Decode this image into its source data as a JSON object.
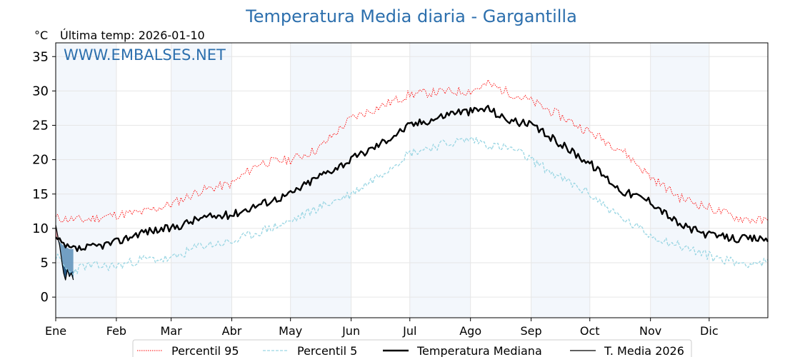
{
  "chart_data": {
    "type": "line",
    "title": "Temperatura Media diaria - Gargantilla",
    "unit": "°C",
    "last_temp_label": "Última temp: 2026-01-10",
    "watermark": "WWW.EMBALSES.NET",
    "ylim": [
      -3,
      37
    ],
    "y_ticks": [
      0,
      5,
      10,
      15,
      20,
      25,
      30,
      35
    ],
    "x_range_days": [
      1,
      365
    ],
    "months": [
      {
        "label": "Ene",
        "day": 1
      },
      {
        "label": "Feb",
        "day": 32
      },
      {
        "label": "Mar",
        "day": 60
      },
      {
        "label": "Abr",
        "day": 91
      },
      {
        "label": "May",
        "day": 121
      },
      {
        "label": "Jun",
        "day": 152
      },
      {
        "label": "Jul",
        "day": 182
      },
      {
        "label": "Ago",
        "day": 213
      },
      {
        "label": "Sep",
        "day": 244
      },
      {
        "label": "Oct",
        "day": 274
      },
      {
        "label": "Nov",
        "day": 305
      },
      {
        "label": "Dic",
        "day": 335
      }
    ],
    "grid": true,
    "legend_position": "bottom",
    "series": [
      {
        "name": "Percentil 95",
        "color": "#ff0000",
        "style": "dotted",
        "points": [
          [
            1,
            11.5
          ],
          [
            15,
            11.2
          ],
          [
            32,
            12.0
          ],
          [
            45,
            12.3
          ],
          [
            60,
            13.5
          ],
          [
            75,
            15.5
          ],
          [
            91,
            16.5
          ],
          [
            105,
            19.5
          ],
          [
            121,
            20.0
          ],
          [
            135,
            21.5
          ],
          [
            152,
            26.0
          ],
          [
            165,
            27.5
          ],
          [
            182,
            29.5
          ],
          [
            195,
            29.8
          ],
          [
            213,
            30.0
          ],
          [
            222,
            31.0
          ],
          [
            235,
            29.5
          ],
          [
            244,
            28.5
          ],
          [
            258,
            26.5
          ],
          [
            274,
            24.0
          ],
          [
            290,
            21.5
          ],
          [
            305,
            17.5
          ],
          [
            320,
            14.5
          ],
          [
            335,
            13.0
          ],
          [
            350,
            11.5
          ],
          [
            365,
            11.0
          ]
        ]
      },
      {
        "name": "Percentil 5",
        "color": "#9ad6e3",
        "style": "dashed",
        "points": [
          [
            1,
            6.0
          ],
          [
            8,
            3.5
          ],
          [
            15,
            4.5
          ],
          [
            32,
            4.5
          ],
          [
            45,
            5.5
          ],
          [
            60,
            5.5
          ],
          [
            75,
            7.5
          ],
          [
            91,
            8.0
          ],
          [
            105,
            9.5
          ],
          [
            121,
            11.0
          ],
          [
            135,
            13.0
          ],
          [
            152,
            15.0
          ],
          [
            165,
            17.5
          ],
          [
            182,
            21.0
          ],
          [
            195,
            22.0
          ],
          [
            213,
            23.0
          ],
          [
            225,
            22.0
          ],
          [
            235,
            21.5
          ],
          [
            244,
            20.0
          ],
          [
            258,
            17.5
          ],
          [
            274,
            15.0
          ],
          [
            290,
            11.5
          ],
          [
            305,
            9.0
          ],
          [
            320,
            7.5
          ],
          [
            335,
            6.0
          ],
          [
            350,
            5.0
          ],
          [
            365,
            5.0
          ]
        ]
      },
      {
        "name": "Temperatura Mediana",
        "color": "#000000",
        "style": "solid-thick",
        "points": [
          [
            1,
            8.5
          ],
          [
            5,
            7.5
          ],
          [
            8,
            7.0
          ],
          [
            15,
            7.0
          ],
          [
            32,
            8.0
          ],
          [
            45,
            9.5
          ],
          [
            60,
            10.0
          ],
          [
            75,
            11.5
          ],
          [
            91,
            12.0
          ],
          [
            105,
            13.5
          ],
          [
            121,
            15.0
          ],
          [
            135,
            17.5
          ],
          [
            152,
            20.0
          ],
          [
            165,
            22.0
          ],
          [
            182,
            25.0
          ],
          [
            195,
            26.0
          ],
          [
            205,
            27.0
          ],
          [
            213,
            27.0
          ],
          [
            222,
            27.5
          ],
          [
            230,
            26.0
          ],
          [
            244,
            25.0
          ],
          [
            258,
            22.5
          ],
          [
            274,
            19.5
          ],
          [
            290,
            15.5
          ],
          [
            305,
            14.0
          ],
          [
            320,
            10.5
          ],
          [
            335,
            9.0
          ],
          [
            350,
            8.5
          ],
          [
            365,
            8.5
          ]
        ]
      },
      {
        "name": "T. Media 2026",
        "color": "#000000",
        "style": "solid-thin",
        "points": [
          [
            1,
            10.5
          ],
          [
            2,
            9.0
          ],
          [
            3,
            7.5
          ],
          [
            4,
            5.5
          ],
          [
            5,
            3.5
          ],
          [
            6,
            2.5
          ],
          [
            7,
            4.0
          ],
          [
            8,
            3.0
          ],
          [
            9,
            3.5
          ],
          [
            10,
            2.5
          ]
        ]
      }
    ]
  }
}
